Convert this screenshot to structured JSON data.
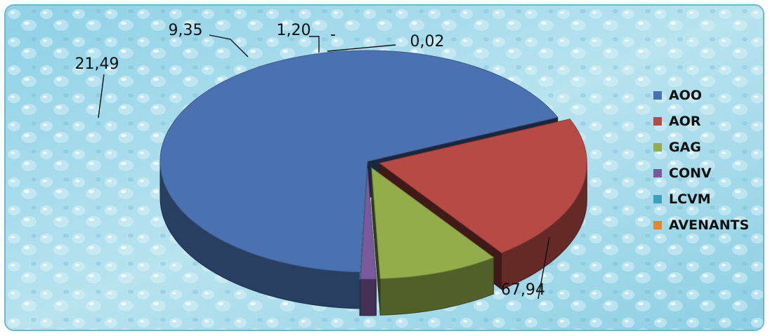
{
  "chart_data": {
    "type": "pie",
    "title": "",
    "categories": [
      "AOO",
      "AOR",
      "GAG",
      "CONV",
      "LCVM",
      "AVENANTS"
    ],
    "values": [
      67.94,
      21.49,
      9.35,
      1.2,
      0.02,
      0.0
    ],
    "data_labels": [
      "67,94",
      "21,49",
      "9,35",
      "1,20",
      "0,02",
      "-"
    ],
    "colors": [
      "#4a72b0",
      "#b84a45",
      "#93ad4b",
      "#7a5a9c",
      "#3fa0bd",
      "#e8842d"
    ],
    "legend_position": "right",
    "style": "3d-exploded"
  }
}
